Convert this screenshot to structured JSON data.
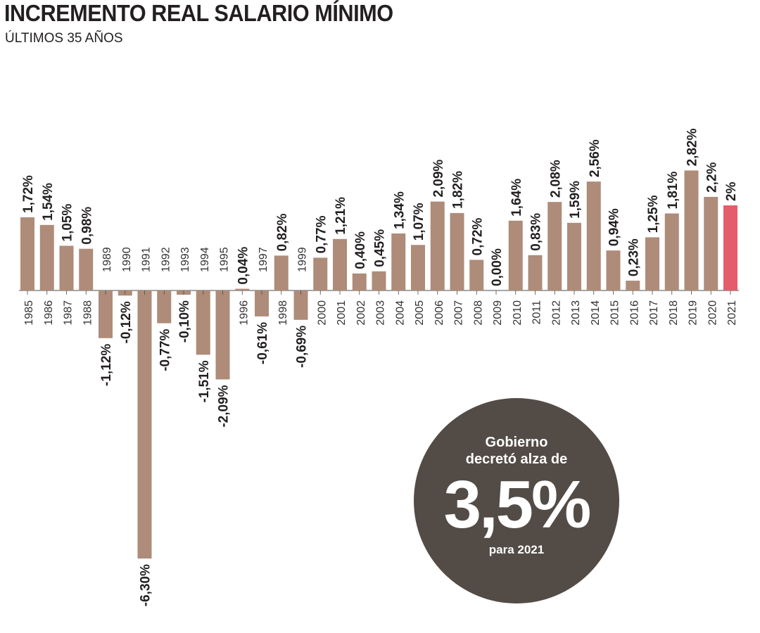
{
  "title": "INCREMENTO REAL SALARIO MÍNIMO",
  "subtitle": "ÚLTIMOS 35 AÑOS",
  "callout": {
    "line1": "Gobierno",
    "line2": "decretó alza de",
    "value": "3,5%",
    "line3": "para 2021"
  },
  "colors": {
    "bar": "#ae8c79",
    "highlight": "#e45d6b",
    "bubble": "#534b46",
    "text": "#231f20"
  },
  "chart_data": {
    "type": "bar",
    "title": "INCREMENTO REAL SALARIO MÍNIMO",
    "subtitle": "ÚLTIMOS 35 AÑOS",
    "xlabel": "",
    "ylabel": "",
    "unit": "%",
    "ylim": [
      -6.3,
      2.82
    ],
    "grid": false,
    "highlight_category": "2021",
    "categories": [
      "1985",
      "1986",
      "1987",
      "1988",
      "1989",
      "1990",
      "1991",
      "1992",
      "1993",
      "1994",
      "1995",
      "1996",
      "1997",
      "1998",
      "1999",
      "2000",
      "2001",
      "2002",
      "2003",
      "2004",
      "2005",
      "2006",
      "2007",
      "2008",
      "2009",
      "2010",
      "2011",
      "2012",
      "2013",
      "2014",
      "2015",
      "2016",
      "2017",
      "2018",
      "2019",
      "2020",
      "2021"
    ],
    "values": [
      1.72,
      1.54,
      1.05,
      0.98,
      -1.12,
      -0.12,
      -6.3,
      -0.77,
      -0.1,
      -1.51,
      -2.09,
      0.04,
      -0.61,
      0.82,
      -0.69,
      0.77,
      1.21,
      0.4,
      0.45,
      1.34,
      1.07,
      2.09,
      1.82,
      0.72,
      0.0,
      1.64,
      0.83,
      2.08,
      1.59,
      2.56,
      0.94,
      0.23,
      1.25,
      1.81,
      2.82,
      2.2,
      2
    ],
    "value_labels": [
      "1,72%",
      "1,54%",
      "1,05%",
      "0,98%",
      "-1,12%",
      "-0,12%",
      "-6,30%",
      "-0,77%",
      "-0,10%",
      "-1,51%",
      "-2,09%",
      "0,04%",
      "-0,61%",
      "0,82%",
      "-0,69%",
      "0,77%",
      "1,21%",
      "0,40%",
      "0,45%",
      "1,34%",
      "1,07%",
      "2,09%",
      "1,82%",
      "0,72%",
      "0,00%",
      "1,64%",
      "0,83%",
      "2,08%",
      "1,59%",
      "2,56%",
      "0,94%",
      "0,23%",
      "1,25%",
      "1,81%",
      "2,82%",
      "2,2%",
      "2%"
    ]
  }
}
